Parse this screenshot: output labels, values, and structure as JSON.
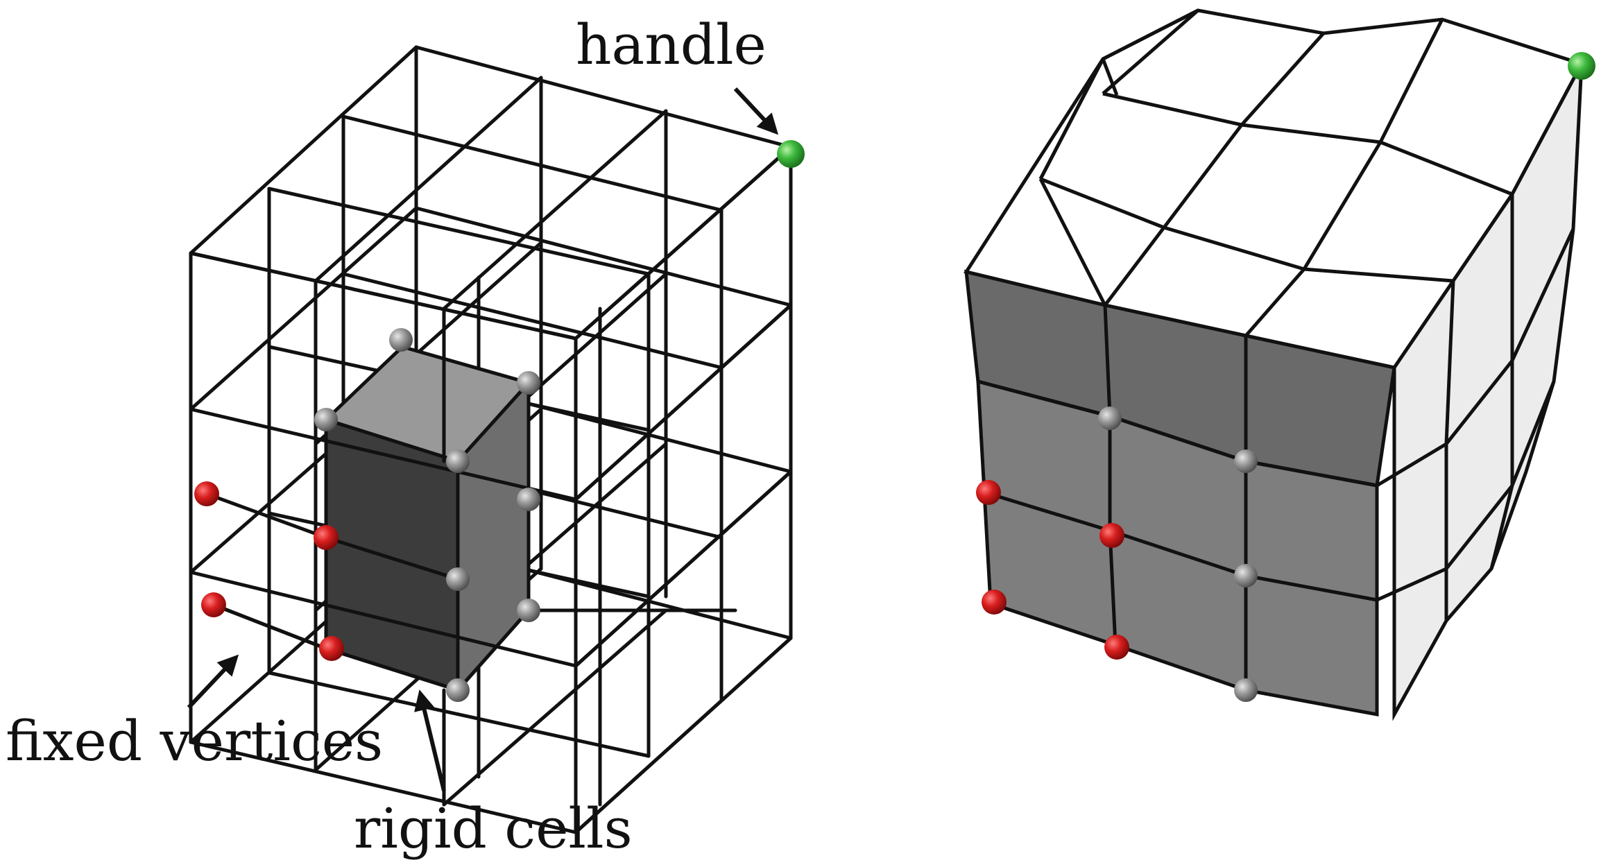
{
  "labels": {
    "handle": "handle",
    "fixed_vertices": "fixed vertices",
    "rigid_cells": "rigid cells"
  },
  "colors": {
    "fixed_vertex": "#d81e1e",
    "handle_vertex": "#3cb93c",
    "rigid_vertex": "#8a8a8a",
    "rigid_front": "#3c3c3c",
    "rigid_top": "#999999",
    "rigid_side": "#6e6e6e",
    "deformed_front": "#7a7a7a",
    "deformed_side": "#ececec",
    "deformed_top": "#ffffff",
    "line": "#111111"
  }
}
